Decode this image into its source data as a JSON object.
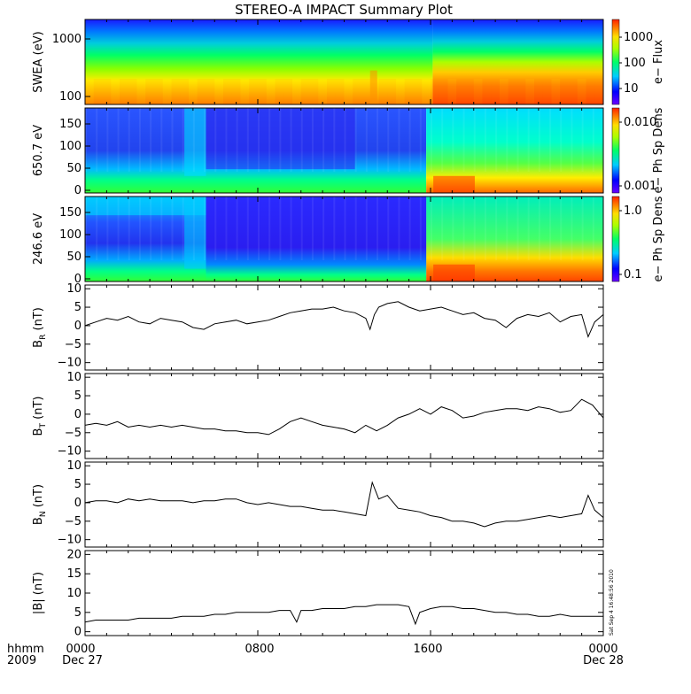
{
  "chart_data": {
    "title": "STEREO-A IMPACT Summary Plot",
    "type": "line",
    "x_axis": {
      "corner_labels": [
        "hhmm",
        "2009"
      ],
      "ticks": [
        "0000",
        "0800",
        "1600",
        "0000"
      ],
      "day_labels": [
        "Dec 27",
        "Dec 28"
      ],
      "range_hours": [
        0,
        24
      ]
    },
    "panels": [
      {
        "id": "swea",
        "type": "heatmap",
        "ylabel": "SWEA (eV)",
        "yscale": "log",
        "yticks": [
          "1000",
          "100"
        ],
        "colorbar_label": "e− Flux",
        "colorbar_ticks": [
          "1000",
          "100",
          "10"
        ],
        "step_hour": 16.1
      },
      {
        "id": "pad650",
        "type": "heatmap",
        "ylabel": "650.7 eV",
        "yticks": [
          "150",
          "100",
          "50",
          "0"
        ],
        "colorbar_label": "e− Ph Sp Dens",
        "colorbar_ticks": [
          "0.010",
          "0.001"
        ]
      },
      {
        "id": "pad246",
        "type": "heatmap",
        "ylabel": "246.6 eV",
        "yticks": [
          "150",
          "100",
          "50",
          "0"
        ],
        "colorbar_label": "e− Ph Sp Dens",
        "colorbar_ticks": [
          "1.0",
          "0.1"
        ]
      },
      {
        "id": "br",
        "ylabel_main": "B",
        "ylabel_sub": "R",
        "ylabel_unit": " (nT)",
        "ylim": [
          -12,
          11
        ],
        "yticks": [
          "10",
          "5",
          "0",
          "−5",
          "−10"
        ],
        "ytick_values": [
          10,
          5,
          0,
          -5,
          -10
        ],
        "x_hours": [
          0,
          0.5,
          1,
          1.5,
          2,
          2.5,
          3,
          3.5,
          4,
          4.5,
          5,
          5.5,
          6,
          6.5,
          7,
          7.5,
          8,
          8.5,
          9,
          9.5,
          10,
          10.5,
          11,
          11.5,
          12,
          12.5,
          13,
          13.2,
          13.4,
          13.6,
          14,
          14.5,
          15,
          15.5,
          16,
          16.5,
          17,
          17.5,
          18,
          18.5,
          19,
          19.5,
          20,
          20.5,
          21,
          21.5,
          22,
          22.5,
          23,
          23.3,
          23.6,
          24
        ],
        "values": [
          0,
          1,
          2,
          1.5,
          2.5,
          1,
          0.5,
          2,
          1.5,
          1,
          -0.5,
          -1,
          0.5,
          1,
          1.5,
          0.5,
          1,
          1.5,
          2.5,
          3.5,
          4,
          4.5,
          4.5,
          5,
          4,
          3.5,
          2,
          -1,
          3,
          5,
          6,
          6.5,
          5,
          4,
          4.5,
          5,
          4,
          3,
          3.5,
          2,
          1.5,
          -0.5,
          2,
          3,
          2.5,
          3.5,
          1,
          2.5,
          3,
          -3,
          1,
          3
        ]
      },
      {
        "id": "bt",
        "ylabel_main": "B",
        "ylabel_sub": "T",
        "ylabel_unit": " (nT)",
        "ylim": [
          -12,
          11
        ],
        "yticks": [
          "10",
          "5",
          "0",
          "−5",
          "−10"
        ],
        "ytick_values": [
          10,
          5,
          0,
          -5,
          -10
        ],
        "x_hours": [
          0,
          0.5,
          1,
          1.5,
          2,
          2.5,
          3,
          3.5,
          4,
          4.5,
          5,
          5.5,
          6,
          6.5,
          7,
          7.5,
          8,
          8.5,
          9,
          9.5,
          10,
          10.5,
          11,
          11.5,
          12,
          12.5,
          13,
          13.5,
          14,
          14.5,
          15,
          15.5,
          16,
          16.5,
          17,
          17.5,
          18,
          18.5,
          19,
          19.5,
          20,
          20.5,
          21,
          21.5,
          22,
          22.5,
          23,
          23.5,
          24
        ],
        "values": [
          -3,
          -2.5,
          -3,
          -2,
          -3.5,
          -3,
          -3.5,
          -3,
          -3.5,
          -3,
          -3.5,
          -4,
          -4,
          -4.5,
          -4.5,
          -5,
          -5,
          -5.5,
          -4,
          -2,
          -1,
          -2,
          -3,
          -3.5,
          -4,
          -5,
          -3,
          -4.5,
          -3,
          -1,
          0,
          1.5,
          0,
          2,
          1,
          -1,
          -0.5,
          0.5,
          1,
          1.5,
          1.5,
          1,
          2,
          1.5,
          0.5,
          1,
          4,
          2.5,
          -1
        ]
      },
      {
        "id": "bn",
        "ylabel_main": "B",
        "ylabel_sub": "N",
        "ylabel_unit": " (nT)",
        "ylim": [
          -12,
          11
        ],
        "yticks": [
          "10",
          "5",
          "0",
          "−5",
          "−10"
        ],
        "ytick_values": [
          10,
          5,
          0,
          -5,
          -10
        ],
        "x_hours": [
          0,
          0.5,
          1,
          1.5,
          2,
          2.5,
          3,
          3.5,
          4,
          4.5,
          5,
          5.5,
          6,
          6.5,
          7,
          7.5,
          8,
          8.5,
          9,
          9.5,
          10,
          10.5,
          11,
          11.5,
          12,
          12.5,
          13,
          13.3,
          13.6,
          14,
          14.5,
          15,
          15.5,
          16,
          16.5,
          17,
          17.5,
          18,
          18.5,
          19,
          19.5,
          20,
          20.5,
          21,
          21.5,
          22,
          22.5,
          23,
          23.3,
          23.6,
          24
        ],
        "values": [
          0,
          0.5,
          0.5,
          0,
          1,
          0.5,
          1,
          0.5,
          0.5,
          0.5,
          0,
          0.5,
          0.5,
          1,
          1,
          0,
          -0.5,
          0,
          -0.5,
          -1,
          -1,
          -1.5,
          -2,
          -2,
          -2.5,
          -3,
          -3.5,
          5.5,
          1,
          2,
          -1.5,
          -2,
          -2.5,
          -3.5,
          -4,
          -5,
          -5,
          -5.5,
          -6.5,
          -5.5,
          -5,
          -5,
          -4.5,
          -4,
          -3.5,
          -4,
          -3.5,
          -3,
          2,
          -2,
          -4
        ]
      },
      {
        "id": "bmag",
        "ylabel_main": "|B| (nT)",
        "ylim": [
          -1,
          21
        ],
        "yticks": [
          "20",
          "15",
          "10",
          "5",
          "0"
        ],
        "ytick_values": [
          20,
          15,
          10,
          5,
          0
        ],
        "x_hours": [
          0,
          0.5,
          1,
          1.5,
          2,
          2.5,
          3,
          3.5,
          4,
          4.5,
          5,
          5.5,
          6,
          6.5,
          7,
          7.5,
          8,
          8.5,
          9,
          9.5,
          9.8,
          10,
          10.5,
          11,
          11.5,
          12,
          12.5,
          13,
          13.5,
          14,
          14.5,
          15,
          15.3,
          15.5,
          16,
          16.5,
          17,
          17.5,
          18,
          18.5,
          19,
          19.5,
          20,
          20.5,
          21,
          21.5,
          22,
          22.5,
          23,
          23.5,
          24
        ],
        "values": [
          2.5,
          3,
          3,
          3,
          3,
          3.5,
          3.5,
          3.5,
          3.5,
          4,
          4,
          4,
          4.5,
          4.5,
          5,
          5,
          5,
          5,
          5.5,
          5.5,
          2.5,
          5.5,
          5.5,
          6,
          6,
          6,
          6.5,
          6.5,
          7,
          7,
          7,
          6.5,
          2,
          5,
          6,
          6.5,
          6.5,
          6,
          6,
          5.5,
          5,
          5,
          4.5,
          4.5,
          4,
          4,
          4.5,
          4,
          4,
          4,
          4
        ]
      }
    ]
  },
  "stamp": "Sat Sep  4 16:48:56 2010"
}
